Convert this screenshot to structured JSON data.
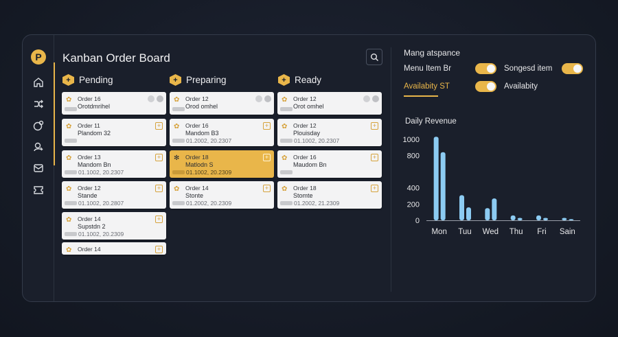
{
  "board": {
    "title": "Kanban Order Board"
  },
  "logo": {
    "letter": "P"
  },
  "nav": [
    {
      "icon": "home-icon"
    },
    {
      "icon": "orders-icon"
    },
    {
      "icon": "tag-icon"
    },
    {
      "icon": "user-icon"
    },
    {
      "icon": "mail-icon"
    },
    {
      "icon": "ticket-icon"
    }
  ],
  "search": {
    "icon": "search-icon"
  },
  "columns": [
    {
      "name": "Pending",
      "cards": [
        {
          "title": "Order 16",
          "sub": "Orotdmrihel",
          "date": "",
          "variant": "dots"
        },
        {
          "title": "Order 11",
          "sub": "Plandom 32",
          "date": "",
          "variant": "plus"
        },
        {
          "title": "Order 13",
          "sub": "Mandom Bn",
          "date": "01.1002, 20.2307",
          "variant": "plus"
        },
        {
          "title": "Order 12",
          "sub": "Stande",
          "date": "01.1002, 20.2807",
          "variant": "plus"
        },
        {
          "title": "Order 14",
          "sub": "Supstdn 2",
          "date": "01.1002, 20.2309",
          "variant": "plus"
        },
        {
          "title": "Order 14",
          "sub": "",
          "date": "",
          "variant": "plus"
        }
      ]
    },
    {
      "name": "Preparing",
      "cards": [
        {
          "title": "Order 12",
          "sub": "Orod omhel",
          "date": "",
          "variant": "dots"
        },
        {
          "title": "Order 16",
          "sub": "Mandom B3",
          "date": "01.2002, 20.2307",
          "variant": "plus"
        },
        {
          "title": "Order 18",
          "sub": "Matlodn S",
          "date": "01.1002, 20.2309",
          "variant": "plus",
          "highlight": true
        },
        {
          "title": "Order 14",
          "sub": "Stonte",
          "date": "01.2002, 20.2309",
          "variant": "plus"
        }
      ]
    },
    {
      "name": "Ready",
      "cards": [
        {
          "title": "Order 12",
          "sub": "Orot omhel",
          "date": "",
          "variant": "dots"
        },
        {
          "title": "Order 12",
          "sub": "Plouisday",
          "date": "01.1002, 20.2307",
          "variant": "plus"
        },
        {
          "title": "Order 16",
          "sub": "Maudom Bn",
          "date": "",
          "variant": "plus"
        },
        {
          "title": "Order 18",
          "sub": "Stomte",
          "date": "01.2002, 21.2309",
          "variant": "plus"
        }
      ]
    }
  ],
  "settings": {
    "title": "Mang atspance",
    "items": [
      {
        "label": "Menu Item Br",
        "on": true
      },
      {
        "label": "Songesd item",
        "on": true
      },
      {
        "label": "Availabity ST",
        "on": true
      },
      {
        "label": "Availabity",
        "on": null
      }
    ]
  },
  "chart_data": {
    "type": "bar",
    "title": "Daily Revenue",
    "categories": [
      "Mon",
      "Tuu",
      "Wed",
      "Thu",
      "Fri",
      "Sain"
    ],
    "series": [
      {
        "values": [
          1030,
          310,
          150,
          60,
          60,
          30
        ]
      },
      {
        "values": [
          840,
          160,
          270,
          30,
          30,
          15
        ]
      }
    ],
    "yticks": [
      0,
      200,
      400,
      800,
      1000
    ],
    "ylim": [
      0,
      1100
    ],
    "color": "#8ccbf2"
  },
  "colors": {
    "accent": "#e9b64a",
    "bar": "#8ccbf2"
  }
}
